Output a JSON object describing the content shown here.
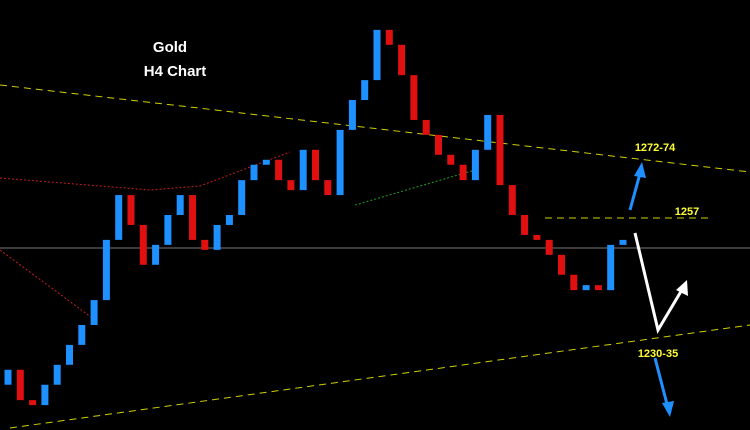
{
  "chart_data": {
    "type": "candlestick",
    "title": "Gold",
    "subtitle": "H4 Chart",
    "annotations": [
      "1272-74",
      "1257",
      "1230-35"
    ],
    "up_color": "#1e90ff",
    "down_color": "#e01010",
    "ylim": [
      1210,
      1305
    ],
    "open": [
      1220,
      1223.3,
      1216.6,
      1215.5,
      1220.0,
      1224.4,
      1228.8,
      1233.2,
      1238.7,
      1252.0,
      1261.9,
      1255.3,
      1246.5,
      1250.9,
      1257.5,
      1261.9,
      1252.0,
      1249.8,
      1255.3,
      1257.5,
      1265.2,
      1268.6,
      1269.7,
      1265.2,
      1263.0,
      1271.9,
      1265.2,
      1261.9,
      1276.3,
      1282.9,
      1287.3,
      1298.4,
      1295.1,
      1288.4,
      1278.5,
      1275.2,
      1270.8,
      1268.6,
      1265.2,
      1271.9,
      1279.6,
      1264.1,
      1257.5,
      1253.1,
      1252.0,
      1248.7,
      1244.3,
      1240.9,
      1242.0,
      1240.9,
      1250.9
    ],
    "close": [
      1223.3,
      1216.6,
      1215.5,
      1220.0,
      1224.4,
      1228.8,
      1233.2,
      1238.7,
      1252.0,
      1261.9,
      1255.3,
      1246.5,
      1250.9,
      1257.5,
      1261.9,
      1252.0,
      1249.8,
      1255.3,
      1257.5,
      1265.2,
      1268.6,
      1269.7,
      1265.2,
      1263.0,
      1271.9,
      1265.2,
      1261.9,
      1276.3,
      1282.9,
      1287.3,
      1298.4,
      1295.1,
      1288.4,
      1278.5,
      1275.2,
      1270.8,
      1268.6,
      1265.2,
      1271.9,
      1279.6,
      1264.1,
      1257.5,
      1253.1,
      1252.0,
      1248.7,
      1244.3,
      1240.9,
      1242.0,
      1240.9,
      1250.9,
      1252.0
    ]
  }
}
